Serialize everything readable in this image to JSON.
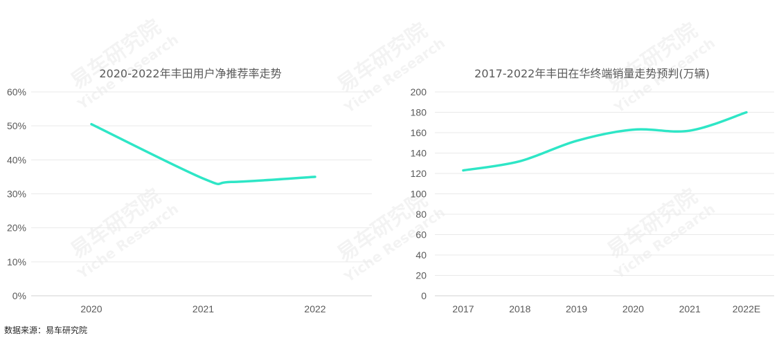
{
  "watermark": {
    "cn": "易车研究院",
    "en": "Yiche Research"
  },
  "source_note": "数据来源：易车研究院",
  "line_color": "#2ee6c6",
  "chart_data": [
    {
      "type": "line",
      "title": "2020-2022年丰田用户净推荐率走势",
      "categories": [
        "2020",
        "2021",
        "2022"
      ],
      "series": [
        {
          "x": [
            0,
            1,
            1.25,
            2
          ],
          "values": [
            50.5,
            34.5,
            33.5,
            35.0
          ]
        }
      ],
      "ylim": [
        0,
        60
      ],
      "yticks": [
        0,
        10,
        20,
        30,
        40,
        50,
        60
      ],
      "ytick_labels": [
        "0%",
        "10%",
        "20%",
        "30%",
        "40%",
        "50%",
        "60%"
      ],
      "grid": true
    },
    {
      "type": "line",
      "title": "2017-2022年丰田在华终端销量走势预判(万辆)",
      "categories": [
        "2017",
        "2018",
        "2019",
        "2020",
        "2021",
        "2022E"
      ],
      "series": [
        {
          "x": [
            0,
            1,
            2,
            3,
            4,
            5
          ],
          "values": [
            123,
            132,
            152,
            163,
            162,
            180
          ]
        }
      ],
      "ylim": [
        0,
        200
      ],
      "yticks": [
        0,
        20,
        40,
        60,
        80,
        100,
        120,
        140,
        160,
        180,
        200
      ],
      "ytick_labels": [
        "0",
        "20",
        "40",
        "60",
        "80",
        "100",
        "120",
        "140",
        "160",
        "180",
        "200"
      ],
      "grid": true
    }
  ]
}
